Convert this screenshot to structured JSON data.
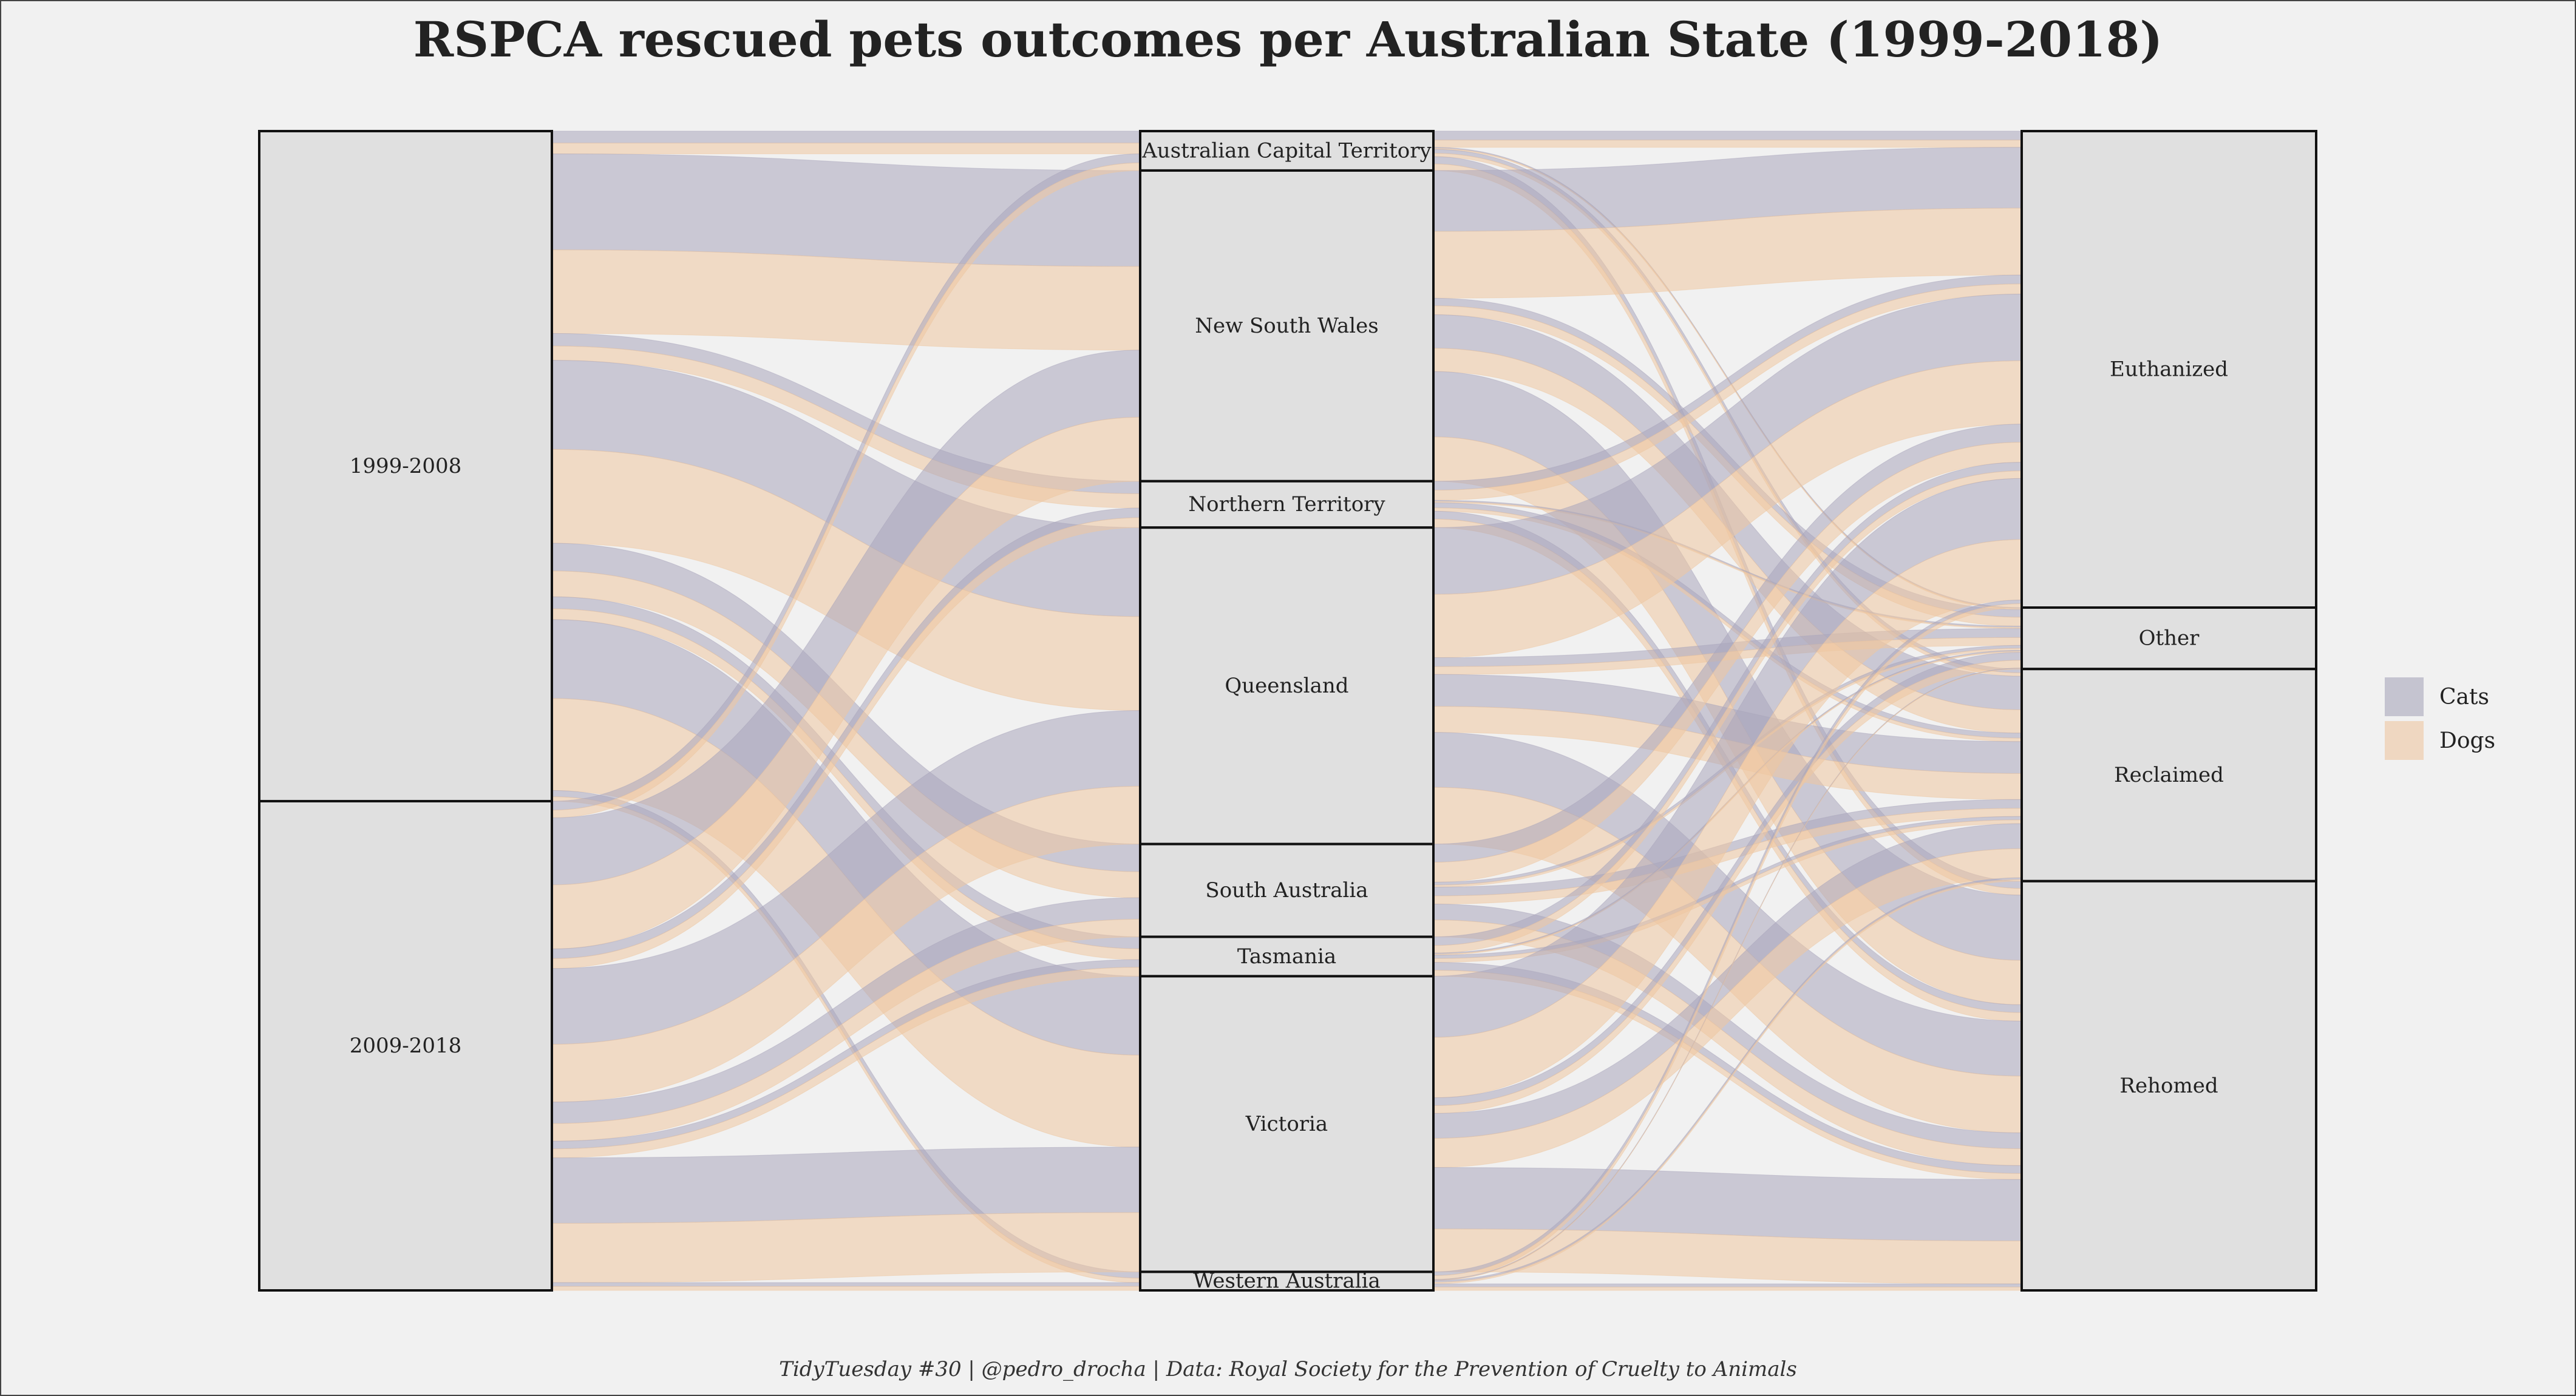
{
  "chart_data": {
    "type": "alluvial",
    "title": "RSPCA rescued pets outcomes per Australian State (1999-2018)",
    "caption": "TidyTuesday #30 | @pedro_drocha | Data: Royal Society for the Prevention of Cruelty to Animals",
    "axes": [
      {
        "name": "period",
        "strata": [
          {
            "label": "1999-2008",
            "share": 0.578
          },
          {
            "label": "2009-2018",
            "share": 0.422
          }
        ]
      },
      {
        "name": "state",
        "strata": [
          {
            "label": "Australian Capital Territory",
            "share": 0.034
          },
          {
            "label": "New South Wales",
            "share": 0.268
          },
          {
            "label": "Northern Territory",
            "share": 0.04
          },
          {
            "label": "Queensland",
            "share": 0.273
          },
          {
            "label": "South Australia",
            "share": 0.08
          },
          {
            "label": "Tasmania",
            "share": 0.034
          },
          {
            "label": "Victoria",
            "share": 0.255
          },
          {
            "label": "Western Australia",
            "share": 0.016
          }
        ]
      },
      {
        "name": "outcome",
        "strata": [
          {
            "label": "Euthanized",
            "share": 0.411
          },
          {
            "label": "Other",
            "share": 0.053
          },
          {
            "label": "Reclaimed",
            "share": 0.183
          },
          {
            "label": "Rehomed",
            "share": 0.353
          }
        ]
      }
    ],
    "legend": {
      "position": "right",
      "items": [
        {
          "label": "Cats",
          "color": "#a9a6bb"
        },
        {
          "label": "Dogs",
          "color": "#eec7a1"
        }
      ]
    },
    "colors": {
      "cats": "#a9a6bb",
      "dogs": "#eec7a1",
      "stratum_fill": "#e0e0e0",
      "stratum_stroke": "#111111",
      "background": "#f1f1f1"
    }
  }
}
